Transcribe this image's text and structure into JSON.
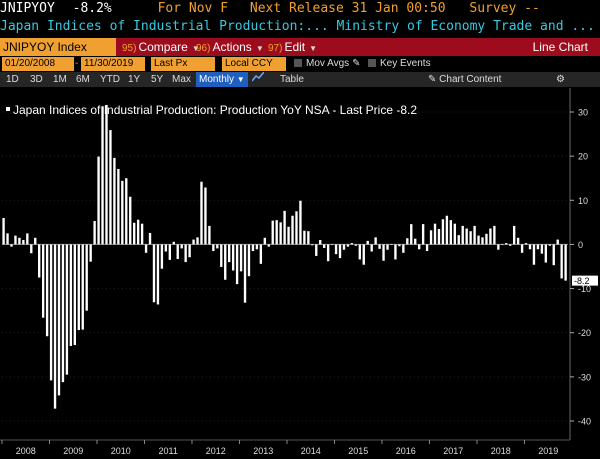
{
  "header": {
    "ticker": "JNIPYOY",
    "change": "-8.2%",
    "for_label": "For Nov F",
    "next_release": "Next Release 31 Jan 00:50",
    "survey": "Survey --",
    "description": "Japan Indices of Industrial Production:...   Ministry of Economy Trade and ..."
  },
  "toolbar": {
    "ticker_index": "JNIPYOY Index",
    "compare_num": "95)",
    "compare_label": "Compare",
    "actions_num": "96)",
    "actions_label": "Actions",
    "edit_num": "97)",
    "edit_label": "Edit",
    "chart_type": "Line Chart"
  },
  "settings": {
    "start_date": "01/20/2008",
    "end_date": "11/30/2019",
    "price_field": "Last Px",
    "currency": "Local CCY",
    "mov_avgs": "Mov Avgs",
    "key_events": "Key Events"
  },
  "periods": {
    "p1d": "1D",
    "p3d": "3D",
    "p1m": "1M",
    "p6m": "6M",
    "pytd": "YTD",
    "p1y": "1Y",
    "p5y": "5Y",
    "pmax": "Max",
    "monthly": "Monthly",
    "table": "Table",
    "chart_content": "Chart Content"
  },
  "colors": {
    "accent_orange": "#f0a030",
    "toolbar_red": "#9c0c1c",
    "text_cyan": "#38c8e0",
    "bar_white": "#ffffff",
    "monthly_blue": "#1f5fbf"
  },
  "chart_data": {
    "type": "bar",
    "title": "Japan Indices of Industrial Production: Production YoY NSA - Last Price -8.2",
    "last_price_label": "-8.2",
    "x_ticks": [
      "2008",
      "2009",
      "2010",
      "2011",
      "2012",
      "2013",
      "2014",
      "2015",
      "2016",
      "2017",
      "2018",
      "2019"
    ],
    "y_ticks": [
      "30",
      "20",
      "10",
      "0",
      "-10",
      "-20",
      "-30",
      "-40"
    ],
    "y_tick_values": [
      30,
      20,
      10,
      0,
      -10,
      -20,
      -30,
      -40
    ],
    "ylim": [
      -42,
      32
    ],
    "start": "2008-01",
    "values": [
      6.0,
      2.5,
      -0.5,
      2.0,
      1.5,
      1.0,
      2.5,
      -2.0,
      1.5,
      -7.5,
      -16.6,
      -20.8,
      -30.8,
      -37.2,
      -34.2,
      -31.2,
      -29.5,
      -23.0,
      -22.8,
      -19.4,
      -19.3,
      -15.0,
      -3.9,
      5.3,
      19.9,
      31.3,
      31.6,
      25.9,
      19.6,
      17.1,
      14.4,
      15.0,
      10.8,
      4.9,
      5.6,
      4.7,
      -1.9,
      2.6,
      -13.1,
      -13.6,
      -5.5,
      -1.6,
      -3.5,
      0.6,
      -3.3,
      -0.9,
      -4.0,
      -2.9,
      1.1,
      1.6,
      14.2,
      12.9,
      4.2,
      -1.5,
      -0.9,
      -5.1,
      -8.0,
      -4.0,
      -5.9,
      -9.0,
      -6.1,
      -13.2,
      -7.2,
      -1.5,
      -1.1,
      -4.4,
      1.5,
      -0.5,
      5.4,
      5.5,
      5.0,
      7.6,
      4.0,
      6.5,
      7.5,
      9.9,
      3.1,
      3.0,
      -0.2,
      -2.6,
      1.0,
      -0.8,
      -3.8,
      -0.1,
      -2.2,
      -3.1,
      -1.2,
      -0.5,
      0.3,
      -0.3,
      -3.4,
      -4.6,
      0.8,
      -1.6,
      1.6,
      -1.0,
      -3.7,
      -1.2,
      -0.1,
      -3.4,
      -0.4,
      -1.9,
      1.4,
      4.6,
      1.3,
      -1.1,
      4.6,
      -1.5,
      3.2,
      4.7,
      3.5,
      5.7,
      6.5,
      5.5,
      4.7,
      2.1,
      4.2,
      3.6,
      3.0,
      4.2,
      2.0,
      1.6,
      2.4,
      3.6,
      4.2,
      -1.2,
      -0.1,
      0.3,
      -0.3,
      4.2,
      1.5,
      -1.9,
      0.3,
      -1.1,
      -4.6,
      -1.1,
      -2.1,
      -4.1,
      -0.3,
      -4.7,
      1.1,
      -7.7,
      -8.2
    ]
  }
}
